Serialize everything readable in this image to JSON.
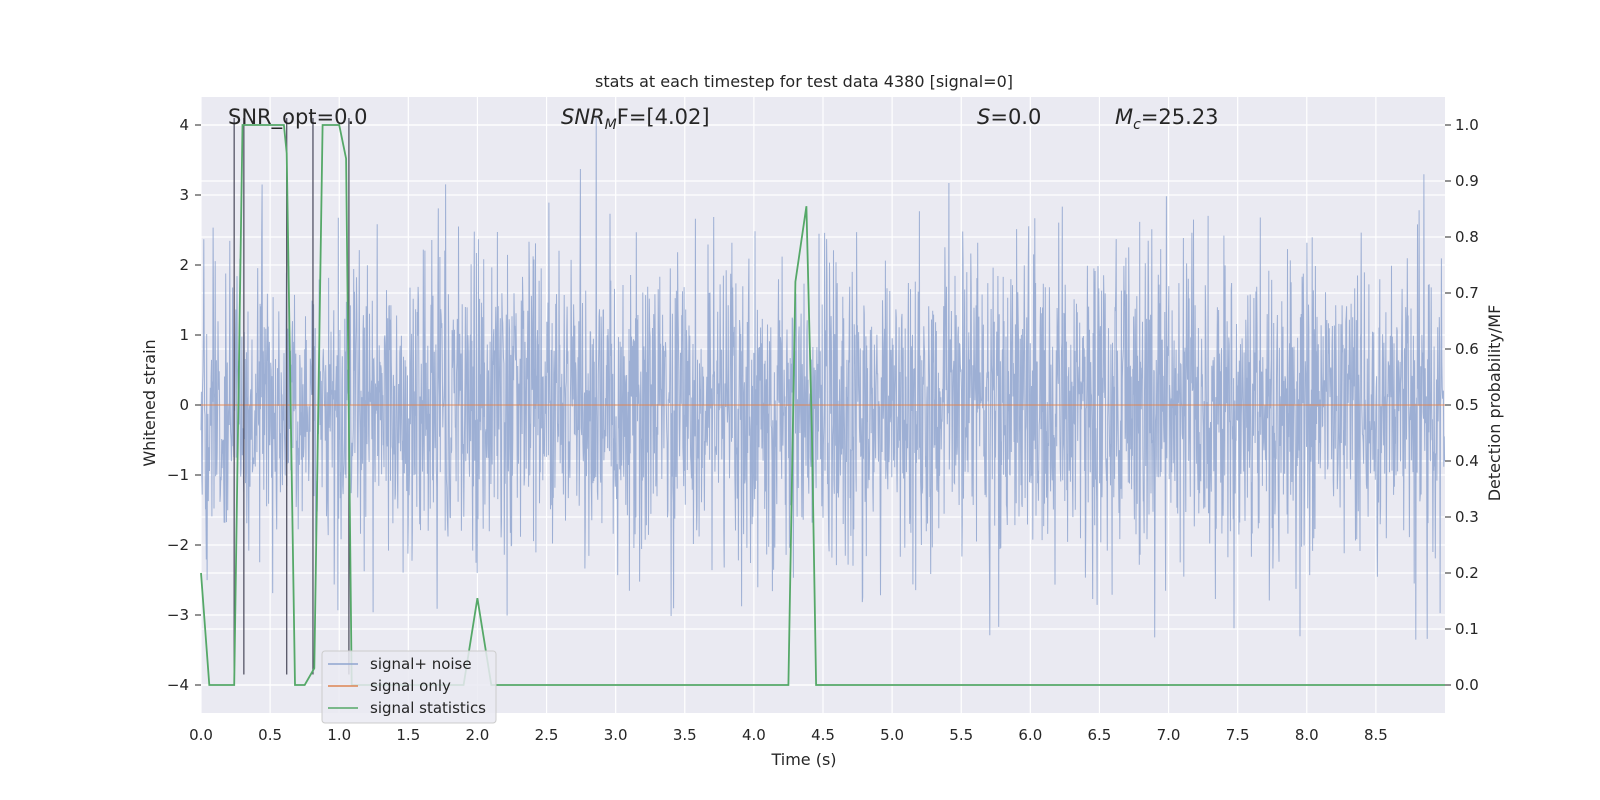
{
  "chart_data": {
    "type": "line",
    "title": "stats at each timestep for test data 4380 [signal=0]",
    "xlabel": "Time (s)",
    "ylabel": "Whitened strain",
    "y2label": "Detection probability/MF",
    "xlim": [
      0.0,
      9.0
    ],
    "ylim": [
      -4.4,
      4.4
    ],
    "y2lim": [
      -0.05,
      1.05
    ],
    "xticks": [
      "0.0",
      "0.5",
      "1.0",
      "1.5",
      "2.0",
      "2.5",
      "3.0",
      "3.5",
      "4.0",
      "4.5",
      "5.0",
      "5.5",
      "6.0",
      "6.5",
      "7.0",
      "7.5",
      "8.0",
      "8.5"
    ],
    "yticks": [
      "4",
      "3",
      "2",
      "1",
      "0",
      "−1",
      "−2",
      "−3",
      "−4"
    ],
    "y2ticks": [
      "1.0",
      "0.9",
      "0.8",
      "0.7",
      "0.6",
      "0.5",
      "0.4",
      "0.3",
      "0.2",
      "0.1",
      "0.0"
    ],
    "grid": true,
    "legend_position": "lower-left",
    "annotations": {
      "snr_opt": "SNR_opt=0.0",
      "snr_mf_main": "SNR",
      "snr_mf_sub": "M",
      "snr_mf_rest": "F=[4.02]",
      "s_main": "S",
      "s_rest": "=0.0",
      "mc_main": "M",
      "mc_sub": "c",
      "mc_rest": "=25.23"
    },
    "series": [
      {
        "name": "signal+ noise",
        "color": "#8fa5cf",
        "kind": "noise",
        "duration": 9.0,
        "sample_rate": 2048,
        "std": 1.0,
        "observed_range": [
          -3.85,
          4.1
        ]
      },
      {
        "name": "signal only",
        "color": "#dd8452",
        "kind": "constant",
        "value": 0.0
      },
      {
        "name": "signal statistics",
        "color": "#55a868",
        "axis": "right",
        "x": [
          0.0,
          0.06,
          0.12,
          0.2,
          0.24,
          0.3,
          0.4,
          0.5,
          0.6,
          0.62,
          0.68,
          0.75,
          0.82,
          0.88,
          0.94,
          1.0,
          1.05,
          1.09,
          1.14,
          1.9,
          2.0,
          2.1,
          4.25,
          4.3,
          4.38,
          4.42,
          4.45,
          4.5,
          9.0
        ],
        "y": [
          0.2,
          0.0,
          0.0,
          0.0,
          0.0,
          1.0,
          1.0,
          1.0,
          1.0,
          0.95,
          0.0,
          0.0,
          0.03,
          1.0,
          1.0,
          1.0,
          0.94,
          0.0,
          0.0,
          0.0,
          0.155,
          0.0,
          0.0,
          0.72,
          0.855,
          0.45,
          0.0,
          0.0,
          0.0
        ]
      }
    ],
    "vertical_markers": [
      0.24,
      0.31,
      0.62,
      0.81,
      1.07
    ]
  }
}
